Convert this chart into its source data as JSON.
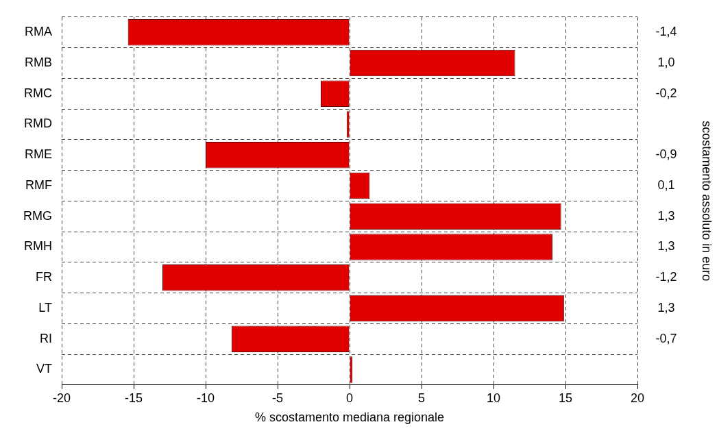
{
  "chart_data": {
    "type": "bar",
    "orientation": "horizontal",
    "categories": [
      "RMA",
      "RMB",
      "RMC",
      "RMD",
      "RME",
      "RMF",
      "RMG",
      "RMH",
      "FR",
      "LT",
      "RI",
      "VT"
    ],
    "y2_categories": [
      "-1,4",
      "1,0",
      "-0,2",
      null,
      "-0,9",
      "0,1",
      "1,3",
      "1,3",
      "-1,2",
      "1,3",
      "-0,7",
      null
    ],
    "values": [
      -15.4,
      11.5,
      -2.0,
      -0.2,
      -10.0,
      1.4,
      14.7,
      14.1,
      -13.0,
      14.9,
      -8.2,
      0.2
    ],
    "color": "#e00000",
    "xlim": [
      -20,
      20
    ],
    "xticks": [
      -20,
      -15,
      -10,
      -5,
      0,
      5,
      10,
      15,
      20
    ],
    "xlabel": "% scostamento mediana regionale",
    "y2label": "scostamento assoluto in euro",
    "grid": true
  }
}
